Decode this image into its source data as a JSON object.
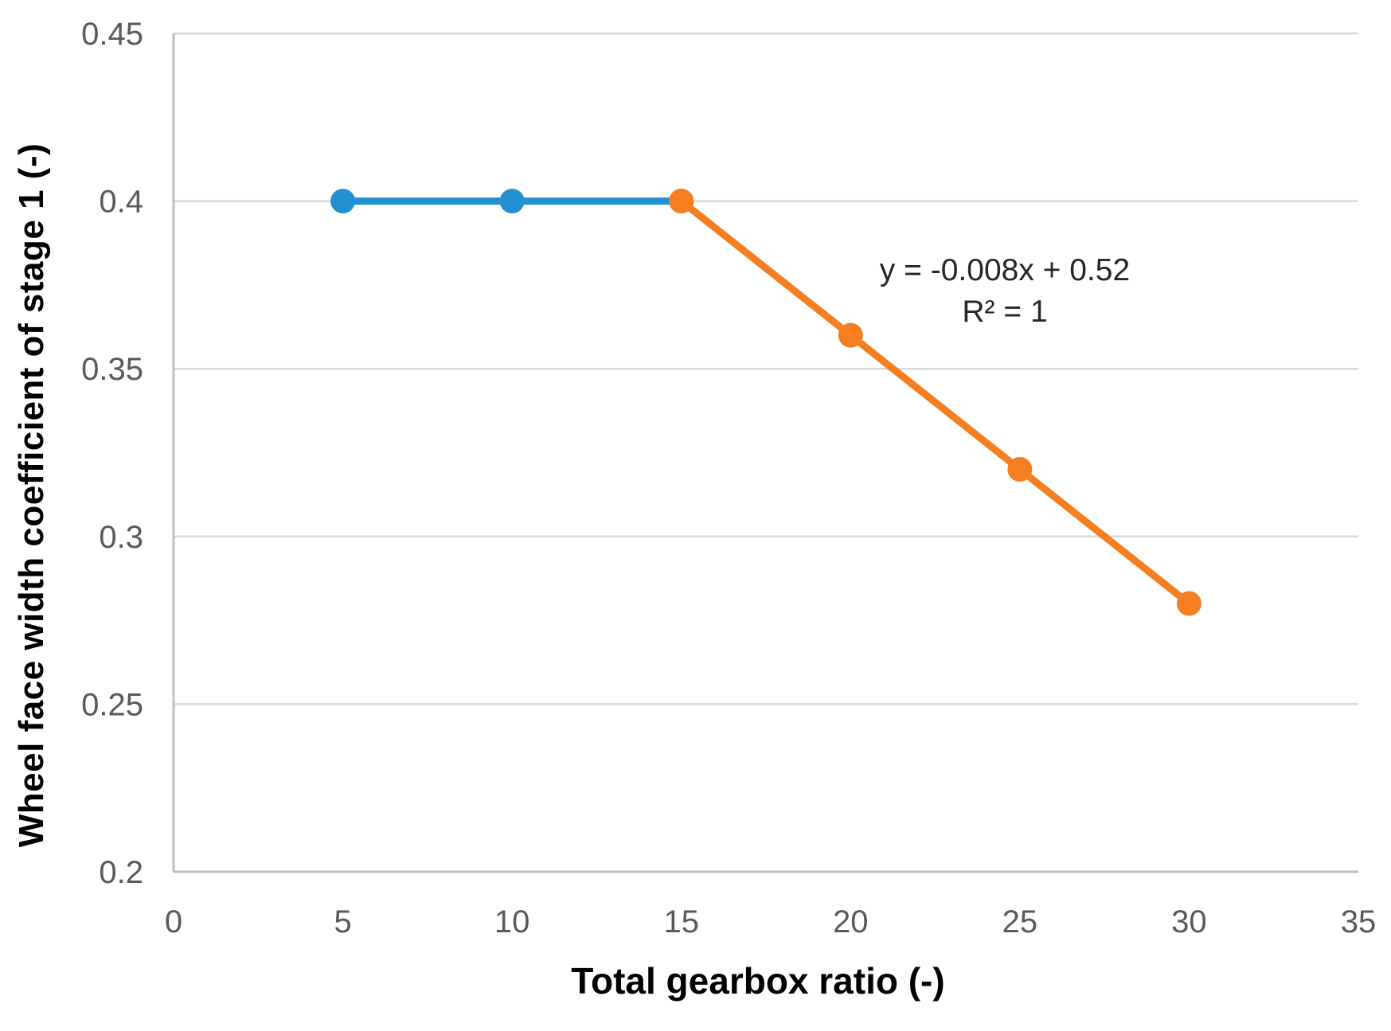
{
  "chart_data": {
    "type": "line",
    "title": "",
    "xlabel": "Total gearbox ratio (-)",
    "ylabel": "Wheel face width coefficient of stage 1 (-)",
    "xlim": [
      0,
      35
    ],
    "ylim": [
      0.2,
      0.45
    ],
    "x_ticks": [
      0,
      5,
      10,
      15,
      20,
      25,
      30,
      35
    ],
    "x_tick_labels": [
      "0",
      "5",
      "10",
      "15",
      "20",
      "25",
      "30",
      "35"
    ],
    "y_ticks": [
      0.2,
      0.25,
      0.3,
      0.35,
      0.4,
      0.45
    ],
    "y_tick_labels": [
      "0.2",
      "0.25",
      "0.3",
      "0.35",
      "0.4",
      "0.45"
    ],
    "grid": "horizontal gridlines on",
    "legend": "none",
    "colors": {
      "grid": "#d9d9d9",
      "axis": "#bfbfbf",
      "tick_label": "#595959",
      "axis_title": "#000000",
      "annotation_text": "#262626",
      "series_blue": "#2191d2",
      "series_orange": "#f57e20"
    },
    "series": [
      {
        "key": "blue-flat-segment",
        "color": "#2191d2",
        "x": [
          5,
          10,
          15
        ],
        "y": [
          0.4,
          0.4,
          0.4
        ]
      },
      {
        "key": "orange-trend-segment",
        "color": "#f57e20",
        "x": [
          15,
          20,
          25,
          30
        ],
        "y": [
          0.4,
          0.36,
          0.32,
          0.28
        ]
      }
    ],
    "annotation": {
      "equation": "y = -0.008x + 0.52",
      "r_squared": "R² = 1"
    }
  }
}
